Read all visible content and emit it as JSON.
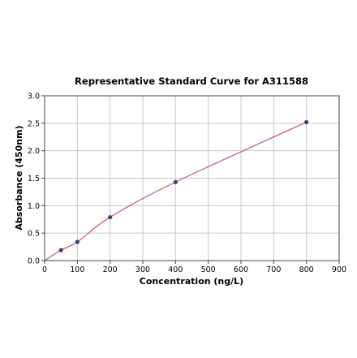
{
  "chart_data": {
    "type": "scatter",
    "title": "Representative Standard Curve for A311588",
    "xlabel": "Concentration (ng/L)",
    "ylabel": "Absorbance (450nm)",
    "xlim": [
      0,
      900
    ],
    "ylim": [
      0,
      3.0
    ],
    "x_ticks": [
      0,
      100,
      200,
      300,
      400,
      500,
      600,
      700,
      800,
      900
    ],
    "y_ticks": [
      0.0,
      0.5,
      1.0,
      1.5,
      2.0,
      2.5,
      3.0
    ],
    "grid": true,
    "series": [
      {
        "x": [
          50,
          100,
          200,
          400,
          800
        ],
        "y": [
          0.19,
          0.34,
          0.79,
          1.43,
          2.52
        ],
        "marker_color": "#3b3f75",
        "fit_line_color": "#c0566e"
      }
    ]
  }
}
